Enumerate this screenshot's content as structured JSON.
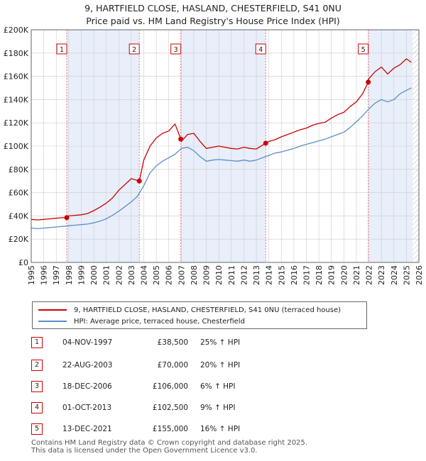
{
  "title_line1": "9, HARTFIELD CLOSE, HASLAND, CHESTERFIELD, S41 0NU",
  "title_line2": "Price paid vs. HM Land Registry's House Price Index (HPI)",
  "legend": {
    "property": "9, HARTFIELD CLOSE, HASLAND, CHESTERFIELD, S41 0NU (terraced house)",
    "hpi": "HPI: Average price, terraced house, Chesterfield"
  },
  "colors": {
    "property": "#cc0000",
    "hpi": "#5b8fc9",
    "shade": "#e8eefa",
    "grid": "#cccccc"
  },
  "sales": [
    {
      "num": "1",
      "date": "04-NOV-1997",
      "price": "£38,500",
      "hpi": "25% ↑ HPI"
    },
    {
      "num": "2",
      "date": "22-AUG-2003",
      "price": "£70,000",
      "hpi": "20% ↑ HPI"
    },
    {
      "num": "3",
      "date": "18-DEC-2006",
      "price": "£106,000",
      "hpi": "6% ↑ HPI"
    },
    {
      "num": "4",
      "date": "01-OCT-2013",
      "price": "£102,500",
      "hpi": "9% ↑ HPI"
    },
    {
      "num": "5",
      "date": "13-DEC-2021",
      "price": "£155,000",
      "hpi": "16% ↑ HPI"
    }
  ],
  "footer_line1": "Contains HM Land Registry data © Crown copyright and database right 2025.",
  "footer_line2": "This data is licensed under the Open Government Licence v3.0.",
  "chart_data": {
    "type": "line",
    "title": "9, HARTFIELD CLOSE, HASLAND, CHESTERFIELD, S41 0NU",
    "subtitle": "Price paid vs. HM Land Registry's House Price Index (HPI)",
    "xlabel": "",
    "ylabel": "",
    "xlim": [
      1995,
      2026
    ],
    "ylim": [
      0,
      200000
    ],
    "x_ticks": [
      1995,
      1996,
      1997,
      1998,
      1999,
      2000,
      2001,
      2002,
      2003,
      2004,
      2005,
      2006,
      2007,
      2008,
      2009,
      2010,
      2011,
      2012,
      2013,
      2014,
      2015,
      2016,
      2017,
      2018,
      2019,
      2020,
      2021,
      2022,
      2023,
      2024,
      2025,
      2026
    ],
    "y_ticks": [
      {
        "value": 0,
        "label": "£0"
      },
      {
        "value": 20000,
        "label": "£20K"
      },
      {
        "value": 40000,
        "label": "£40K"
      },
      {
        "value": 60000,
        "label": "£60K"
      },
      {
        "value": 80000,
        "label": "£80K"
      },
      {
        "value": 100000,
        "label": "£100K"
      },
      {
        "value": 120000,
        "label": "£120K"
      },
      {
        "value": 140000,
        "label": "£140K"
      },
      {
        "value": 160000,
        "label": "£160K"
      },
      {
        "value": 180000,
        "label": "£180K"
      },
      {
        "value": 200000,
        "label": "£200K"
      }
    ],
    "grid": true,
    "shaded_ranges": [
      [
        1997.84,
        2003.64
      ],
      [
        2006.96,
        2013.75
      ],
      [
        2021.95,
        2025.5
      ]
    ],
    "future_hatch_from": 2025.5,
    "transactions": [
      {
        "label": "1",
        "x": 1997.84,
        "y": 38500
      },
      {
        "label": "2",
        "x": 2003.64,
        "y": 70000
      },
      {
        "label": "3",
        "x": 2006.96,
        "y": 106000
      },
      {
        "label": "4",
        "x": 2013.75,
        "y": 102500
      },
      {
        "label": "5",
        "x": 2021.95,
        "y": 155000
      }
    ],
    "series": [
      {
        "name": "9, HARTFIELD CLOSE, HASLAND, CHESTERFIELD, S41 0NU (terraced house)",
        "x": [
          1995,
          1995.5,
          1996,
          1996.5,
          1997,
          1997.5,
          1997.84,
          1998,
          1998.5,
          1999,
          1999.5,
          2000,
          2000.5,
          2001,
          2001.5,
          2002,
          2002.5,
          2003,
          2003.64,
          2004,
          2004.5,
          2005,
          2005.5,
          2006,
          2006.5,
          2006.96,
          2007,
          2007.5,
          2008,
          2008.5,
          2009,
          2009.5,
          2010,
          2010.5,
          2011,
          2011.5,
          2012,
          2012.5,
          2013,
          2013.75,
          2014,
          2014.5,
          2015,
          2015.5,
          2016,
          2016.5,
          2017,
          2017.5,
          2018,
          2018.5,
          2019,
          2019.5,
          2020,
          2020.5,
          2021,
          2021.5,
          2021.95,
          2022,
          2022.5,
          2023,
          2023.5,
          2024,
          2024.5,
          2025,
          2025.4
        ],
        "values": [
          37000,
          36500,
          37000,
          37500,
          38000,
          38500,
          38500,
          40000,
          40500,
          41000,
          42000,
          44500,
          47500,
          51000,
          55500,
          62000,
          67000,
          72000,
          70000,
          88000,
          100000,
          107000,
          111000,
          113000,
          119000,
          106000,
          104000,
          110000,
          111000,
          104000,
          98000,
          99000,
          100000,
          99000,
          98000,
          97500,
          99000,
          98000,
          97500,
          102500,
          104000,
          105500,
          108000,
          110000,
          112000,
          114000,
          115500,
          118000,
          119500,
          120500,
          124000,
          127000,
          129000,
          134000,
          138000,
          145000,
          155000,
          158000,
          164000,
          168000,
          162000,
          167000,
          170000,
          175000,
          172000
        ]
      },
      {
        "name": "HPI: Average price, terraced house, Chesterfield",
        "x": [
          1995,
          1995.5,
          1996,
          1996.5,
          1997,
          1997.5,
          1998,
          1998.5,
          1999,
          1999.5,
          2000,
          2000.5,
          2001,
          2001.5,
          2002,
          2002.5,
          2003,
          2003.5,
          2004,
          2004.5,
          2005,
          2005.5,
          2006,
          2006.5,
          2007,
          2007.5,
          2008,
          2008.5,
          2009,
          2009.5,
          2010,
          2010.5,
          2011,
          2011.5,
          2012,
          2012.5,
          2013,
          2013.5,
          2014,
          2014.5,
          2015,
          2015.5,
          2016,
          2016.5,
          2017,
          2017.5,
          2018,
          2018.5,
          2019,
          2019.5,
          2020,
          2020.5,
          2021,
          2021.5,
          2022,
          2022.5,
          2023,
          2023.5,
          2024,
          2024.5,
          2025,
          2025.4
        ],
        "values": [
          29500,
          29000,
          29500,
          30000,
          30500,
          31000,
          31500,
          32000,
          32500,
          33000,
          34000,
          35500,
          37500,
          40500,
          44000,
          48000,
          52000,
          57000,
          66000,
          77000,
          83000,
          87000,
          90000,
          93000,
          98000,
          99000,
          96000,
          91000,
          87000,
          88000,
          88500,
          88000,
          87500,
          87000,
          88000,
          87000,
          88000,
          90000,
          92000,
          94000,
          95000,
          96500,
          98000,
          100000,
          101500,
          103000,
          104500,
          106000,
          108000,
          110000,
          112000,
          116000,
          121000,
          126000,
          132000,
          137000,
          140000,
          138000,
          140000,
          145000,
          148000,
          150000
        ]
      }
    ]
  }
}
